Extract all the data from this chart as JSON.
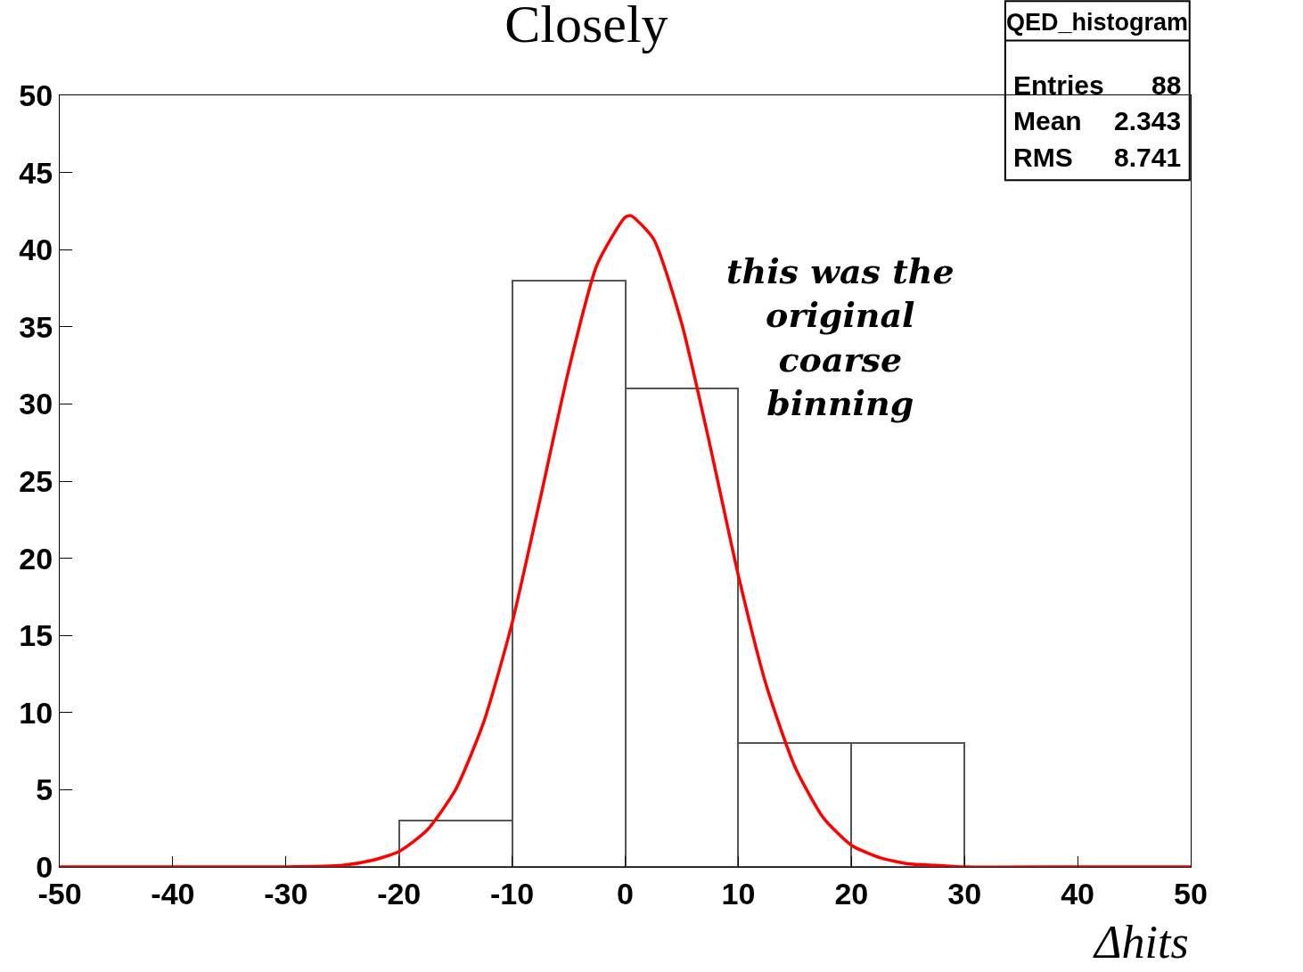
{
  "chart_data": {
    "type": "histogram",
    "title": "Closely",
    "xlabel": "Δhits",
    "bins": [
      -50,
      -40,
      -30,
      -20,
      -10,
      0,
      10,
      20,
      30,
      40,
      50
    ],
    "values": [
      0,
      0,
      0,
      3,
      38,
      31,
      8,
      8,
      0,
      0
    ],
    "color": "#555555",
    "series": [
      {
        "type": "line",
        "color": "#ff0000",
        "x": [
          -50,
          -40,
          -30,
          -25,
          -22.5,
          -20,
          -17.5,
          -15,
          -12.5,
          -10,
          -7.5,
          -5,
          -2.5,
          0,
          0.5,
          2.5,
          5,
          7.5,
          10,
          12.5,
          15,
          17.5,
          20,
          22.5,
          25,
          27.5,
          30,
          40,
          50
        ],
        "values": [
          0,
          0,
          0,
          0.1,
          0.4,
          1.0,
          2.4,
          5.0,
          9.4,
          15.8,
          23.9,
          32.2,
          39.0,
          42.1,
          42.2,
          40.7,
          35.2,
          27.3,
          18.9,
          11.7,
          6.5,
          3.2,
          1.4,
          0.6,
          0.2,
          0.1,
          0,
          0,
          0
        ]
      }
    ],
    "annotations": [
      "QED_histogram",
      "Entries",
      "88",
      "Mean",
      "2.343",
      "RMS",
      "8.741",
      "this was the original coarse binning"
    ],
    "xlim": [
      -50,
      50
    ],
    "xticks": [
      -50,
      -40,
      -30,
      -20,
      -10,
      0,
      10,
      20,
      30,
      40,
      50
    ],
    "ylim": [
      0,
      50
    ],
    "yticks": [
      0,
      5,
      10,
      15,
      20,
      25,
      30,
      35,
      40,
      45,
      50
    ],
    "grid": false
  }
}
